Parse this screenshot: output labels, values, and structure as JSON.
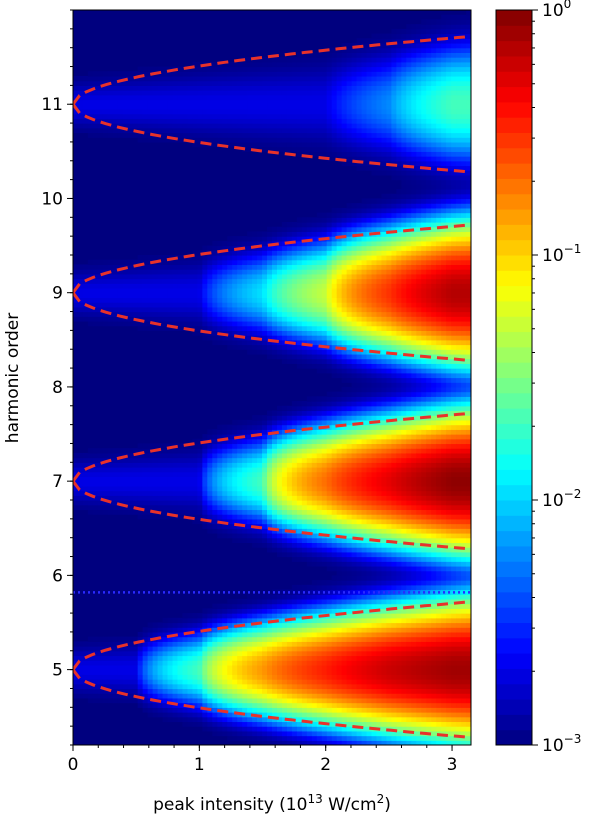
{
  "chart_data": {
    "type": "heatmap",
    "title": "",
    "xlabel": {
      "prefix": "peak intensity (10",
      "exp1": "13",
      "mid": " W/cm",
      "exp2": "2",
      "suffix": ")"
    },
    "ylabel": "harmonic order",
    "xlim": [
      0,
      3.15
    ],
    "ylim": [
      4.2,
      12.0
    ],
    "x_ticks": [
      0,
      1,
      2,
      3
    ],
    "x_tick_labels": [
      "0",
      "1",
      "2",
      "3"
    ],
    "y_ticks": [
      5,
      6,
      7,
      8,
      9,
      10,
      11
    ],
    "y_tick_labels": [
      "5",
      "6",
      "7",
      "8",
      "9",
      "10",
      "11"
    ],
    "colorbar": {
      "scale": "log",
      "range": [
        0.001,
        1
      ],
      "colormap": "jet",
      "ticks": [
        {
          "value": 0.001,
          "base": "10",
          "exp": "−3"
        },
        {
          "value": 0.01,
          "base": "10",
          "exp": "−2"
        },
        {
          "value": 0.1,
          "base": "10",
          "exp": "−1"
        },
        {
          "value": 1,
          "base": "10",
          "exp": "0"
        }
      ]
    },
    "harmonic_peaks": [
      {
        "center": 5.0,
        "intensities": [
          0,
          0.5,
          1.0,
          1.5,
          2.0,
          2.5,
          3.0
        ],
        "strength": [
          0.001,
          0.001,
          0.02,
          0.15,
          0.35,
          0.6,
          0.8
        ]
      },
      {
        "center": 7.0,
        "intensities": [
          0,
          0.5,
          1.0,
          1.5,
          2.0,
          2.5,
          3.0
        ],
        "strength": [
          0.001,
          0.001,
          0.001,
          0.02,
          0.2,
          0.5,
          0.9
        ]
      },
      {
        "center": 9.0,
        "intensities": [
          0,
          0.5,
          1.0,
          1.5,
          2.0,
          2.5,
          3.0
        ],
        "strength": [
          0.001,
          0.001,
          0.001,
          0.01,
          0.05,
          0.3,
          0.7
        ]
      },
      {
        "center": 11.0,
        "intensities": [
          0,
          0.5,
          1.0,
          1.5,
          2.0,
          2.5,
          3.0
        ],
        "strength": [
          0.001,
          0.001,
          0.001,
          0.001,
          0.001,
          0.005,
          0.02
        ]
      }
    ],
    "cutoff_curves": {
      "style": "red dashed",
      "color": "#e8322a",
      "centers": [
        5,
        7,
        9,
        11
      ],
      "width_at_max_intensity": 0.72
    },
    "threshold_line": {
      "y": 5.82,
      "style": "blue dotted",
      "color": "#2a2aff"
    }
  }
}
